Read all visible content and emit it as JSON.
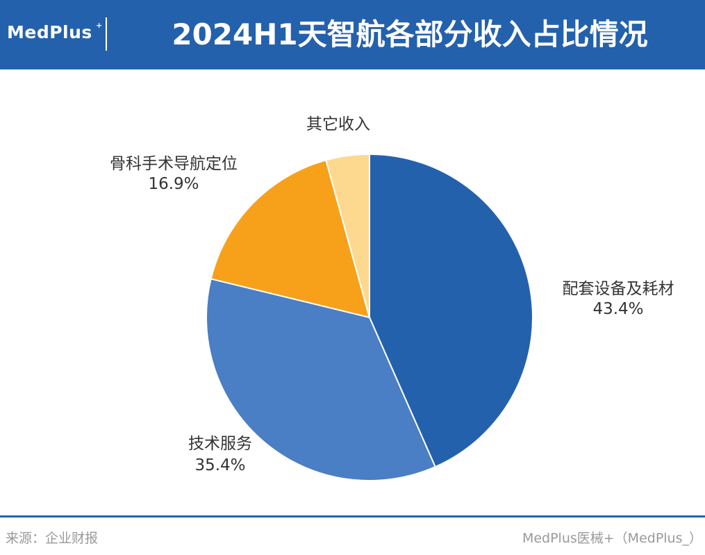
{
  "header": {
    "logo": "MedPlus",
    "logo_sup": "+",
    "title": "2024H1天智航各部分收入占比情况"
  },
  "chart_data": {
    "type": "pie",
    "title": "2024H1天智航各部分收入占比情况",
    "unit": "%",
    "slices": [
      {
        "label": "配套设备及耗材",
        "value": 43.4,
        "value_text": "43.4%",
        "color": "#2461ad"
      },
      {
        "label": "技术服务",
        "value": 35.4,
        "value_text": "35.4%",
        "color": "#4a7ec5"
      },
      {
        "label": "骨科手术导航定位",
        "value": 16.9,
        "value_text": "16.9%",
        "color": "#f7a11a"
      },
      {
        "label": "其它收入",
        "value": 4.3,
        "value_text": "",
        "color": "#fcd98f"
      }
    ]
  },
  "footer": {
    "source": "来源：企业财报",
    "credit": "MedPlus医械+（MedPlus_）"
  }
}
